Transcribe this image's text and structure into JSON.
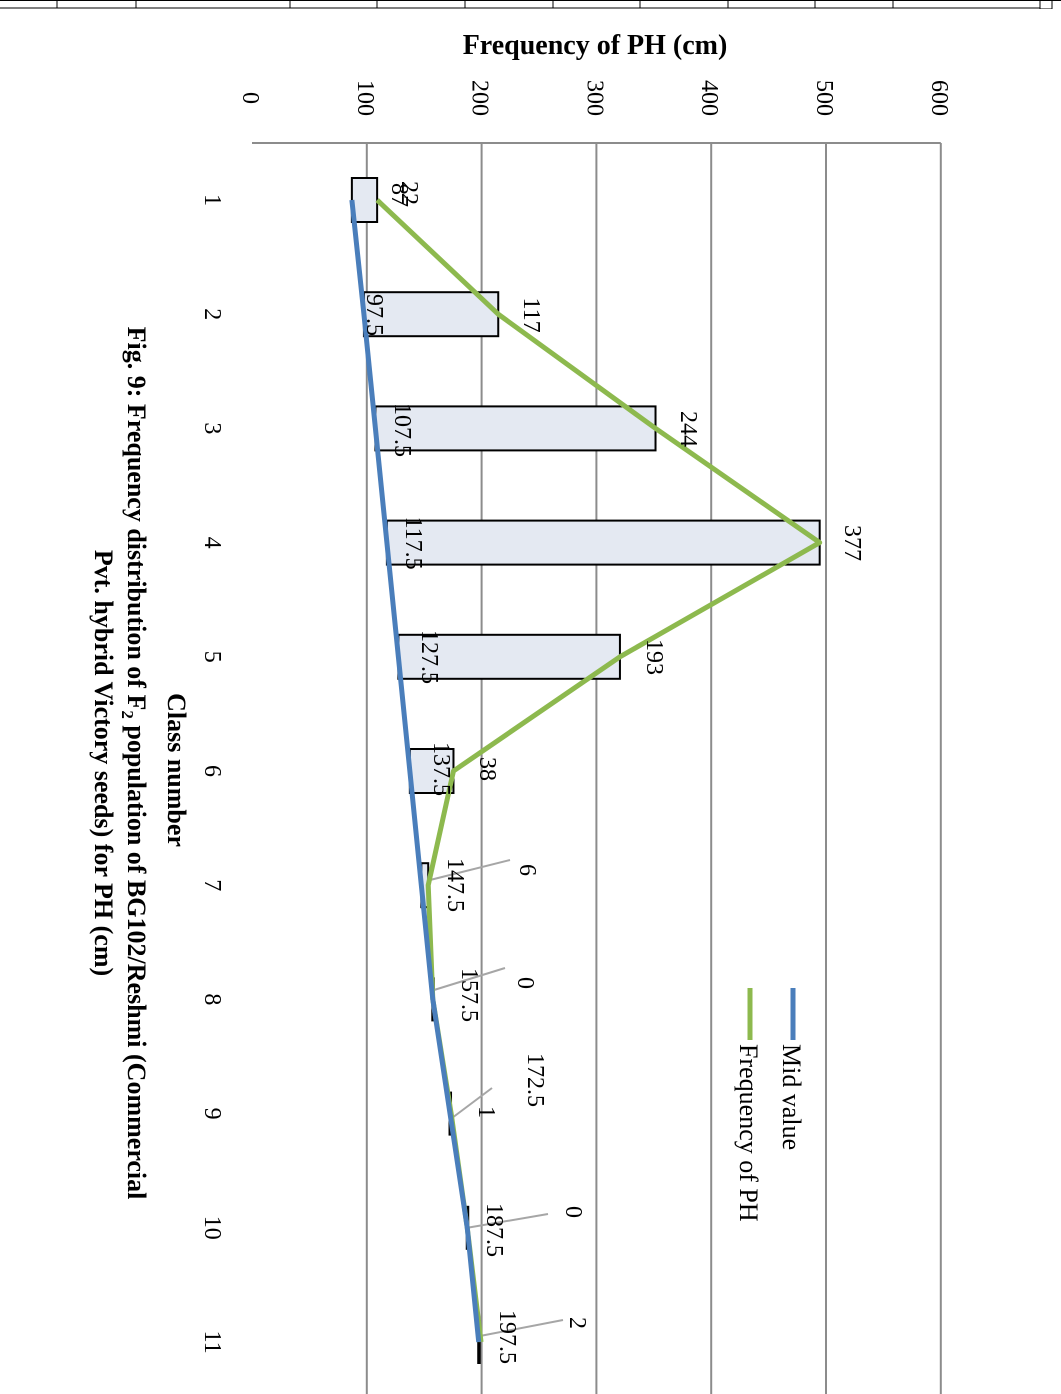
{
  "chart_data": {
    "type": "bar",
    "title": "Frequency  of PH (cm)",
    "xlabel": "Class number",
    "ylabel": "",
    "categories": [
      "1",
      "2",
      "3",
      "4",
      "5",
      "6",
      "7",
      "8",
      "9",
      "10",
      "11"
    ],
    "ylim": [
      0,
      600
    ],
    "yticks": [
      "0",
      "100",
      "200",
      "300",
      "400",
      "500",
      "600"
    ],
    "series": [
      {
        "name": "Mid value",
        "type": "line",
        "color": "#4a7ebb",
        "values": [
          87,
          97.5,
          107.5,
          117.5,
          127.5,
          137.5,
          147.5,
          157.5,
          172.5,
          187.5,
          197.5
        ],
        "labels": [
          "87",
          "97.5",
          "107.5",
          "117.5",
          "127.5",
          "137.5",
          "147.5",
          "157.5",
          "172.5",
          "187.5",
          "197.5"
        ]
      },
      {
        "name": "Frequency  of PH",
        "type": "line",
        "color": "#8db94e",
        "values": [
          22,
          117,
          244,
          377,
          193,
          38,
          6,
          0,
          1,
          0,
          2
        ],
        "labels": [
          "22",
          "117",
          "244",
          "377",
          "193",
          "38",
          "6",
          "0",
          "1",
          "0",
          "2"
        ]
      }
    ],
    "bar_fill": "#e4e9f2",
    "grid": true,
    "legend_position": "right",
    "caption_line1": "Fig. 9: Frequency distribution of F",
    "caption_sub": "2",
    "caption_line1_rest": " population of BG102/Reshmi (Commercial",
    "caption_line2": "Pvt. hybrid Victory seeds) for PH (cm)"
  }
}
